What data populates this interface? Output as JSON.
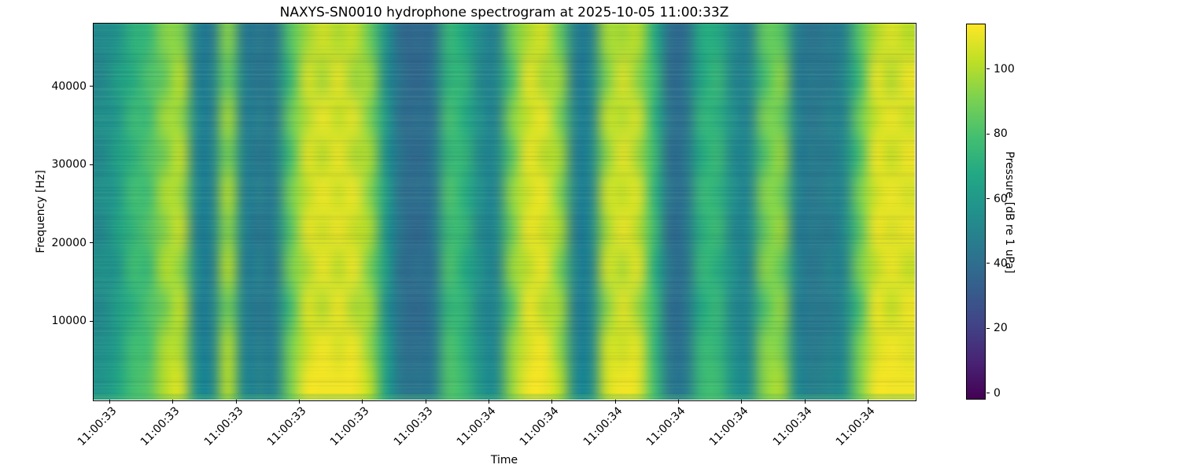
{
  "chart_data": {
    "type": "heatmap",
    "title": "NAXYS-SN0010 hydrophone spectrogram at 2025-10-05 11:00:33Z",
    "xlabel": "Time",
    "ylabel": "Frequency [Hz]",
    "x_tick_labels": [
      "11:00:33",
      "11:00:33",
      "11:00:33",
      "11:00:33",
      "11:00:33",
      "11:00:33",
      "11:00:34",
      "11:00:34",
      "11:00:34",
      "11:00:34",
      "11:00:34",
      "11:00:34",
      "11:00:34"
    ],
    "y_ticks": [
      10000,
      20000,
      30000,
      40000
    ],
    "ylim": [
      0,
      48000
    ],
    "grid_on": false,
    "colorbar": {
      "label": "Pressure [dB re 1 uPa]",
      "ticks": [
        0,
        20,
        40,
        60,
        80,
        100
      ],
      "range_db": [
        -2,
        114
      ],
      "colormap": "viridis"
    },
    "colormap_stops": [
      "#440154",
      "#482475",
      "#414487",
      "#355f8d",
      "#2a788e",
      "#21918c",
      "#22a884",
      "#44bf70",
      "#7ad151",
      "#bddf26",
      "#fde725"
    ],
    "grid_shape": [
      10,
      52
    ],
    "grid_orientation": "rows run top (48 kHz) to bottom (0 Hz); columns run left (11:00:33) to right (11:00:34)",
    "grid_db": [
      [
        53,
        57,
        72,
        75,
        93,
        92,
        50,
        46,
        93,
        46,
        45,
        44,
        83,
        97,
        106,
        100,
        104,
        87,
        57,
        38,
        38,
        40,
        75,
        67,
        53,
        48,
        88,
        100,
        106,
        87,
        48,
        48,
        98,
        98,
        101,
        70,
        40,
        40,
        69,
        69,
        53,
        48,
        86,
        84,
        48,
        42,
        46,
        48,
        83,
        100,
        108,
        102
      ],
      [
        51,
        64,
        69,
        82,
        85,
        103,
        48,
        50,
        85,
        50,
        43,
        48,
        75,
        108,
        98,
        111,
        96,
        98,
        54,
        42,
        36,
        44,
        72,
        74,
        51,
        52,
        80,
        111,
        98,
        98,
        46,
        52,
        90,
        109,
        93,
        77,
        38,
        44,
        66,
        76,
        51,
        52,
        78,
        95,
        46,
        46,
        44,
        52,
        75,
        111,
        100,
        112
      ],
      [
        56,
        58,
        77,
        76,
        99,
        94,
        53,
        47,
        99,
        47,
        48,
        45,
        89,
        99,
        112,
        102,
        110,
        89,
        62,
        39,
        41,
        41,
        80,
        68,
        56,
        49,
        94,
        102,
        112,
        89,
        51,
        49,
        104,
        100,
        107,
        71,
        43,
        41,
        74,
        70,
        56,
        49,
        92,
        86,
        51,
        43,
        49,
        49,
        89,
        102,
        112,
        104
      ],
      [
        52,
        65,
        71,
        83,
        88,
        105,
        49,
        51,
        88,
        51,
        44,
        49,
        78,
        110,
        101,
        112,
        99,
        100,
        56,
        43,
        37,
        45,
        74,
        75,
        52,
        53,
        83,
        112,
        101,
        100,
        47,
        53,
        93,
        111,
        96,
        78,
        39,
        45,
        68,
        77,
        52,
        53,
        81,
        97,
        47,
        47,
        45,
        53,
        78,
        112,
        103,
        112
      ],
      [
        56,
        59,
        79,
        77,
        101,
        96,
        53,
        48,
        101,
        48,
        48,
        46,
        91,
        101,
        112,
        104,
        112,
        91,
        64,
        40,
        41,
        42,
        82,
        69,
        56,
        50,
        96,
        104,
        112,
        91,
        51,
        50,
        106,
        102,
        109,
        72,
        43,
        42,
        76,
        71,
        56,
        50,
        94,
        88,
        51,
        44,
        49,
        50,
        91,
        104,
        112,
        106
      ],
      [
        51,
        66,
        73,
        84,
        92,
        106,
        48,
        51,
        92,
        51,
        43,
        49,
        82,
        111,
        105,
        112,
        103,
        101,
        58,
        43,
        36,
        45,
        76,
        76,
        51,
        53,
        87,
        112,
        105,
        101,
        46,
        53,
        97,
        112,
        100,
        79,
        38,
        45,
        70,
        78,
        51,
        53,
        85,
        98,
        46,
        47,
        44,
        53,
        82,
        112,
        107,
        112
      ],
      [
        57,
        57,
        79,
        75,
        102,
        93,
        54,
        47,
        102,
        47,
        49,
        45,
        92,
        98,
        112,
        101,
        112,
        88,
        64,
        39,
        42,
        41,
        82,
        67,
        57,
        49,
        97,
        101,
        112,
        88,
        52,
        49,
        107,
        99,
        110,
        70,
        44,
        41,
        76,
        69,
        57,
        49,
        95,
        85,
        52,
        43,
        50,
        49,
        92,
        101,
        112,
        103
      ],
      [
        52,
        64,
        70,
        82,
        87,
        104,
        49,
        50,
        87,
        50,
        44,
        48,
        77,
        109,
        100,
        112,
        98,
        99,
        55,
        42,
        37,
        44,
        73,
        74,
        52,
        52,
        82,
        112,
        100,
        99,
        47,
        52,
        92,
        110,
        95,
        77,
        39,
        44,
        67,
        76,
        52,
        52,
        80,
        96,
        47,
        46,
        45,
        52,
        77,
        112,
        102,
        112
      ],
      [
        55,
        61,
        78,
        79,
        100,
        98,
        52,
        49,
        100,
        49,
        47,
        47,
        90,
        103,
        112,
        106,
        111,
        93,
        63,
        41,
        40,
        43,
        81,
        71,
        55,
        51,
        95,
        106,
        112,
        93,
        50,
        51,
        105,
        104,
        108,
        74,
        42,
        43,
        75,
        73,
        55,
        51,
        93,
        90,
        50,
        45,
        48,
        51,
        90,
        106,
        112,
        108
      ],
      [
        58,
        66,
        79,
        84,
        101,
        107,
        55,
        52,
        101,
        52,
        50,
        50,
        91,
        112,
        112,
        112,
        112,
        102,
        64,
        44,
        43,
        46,
        82,
        76,
        58,
        54,
        96,
        112,
        112,
        102,
        53,
        54,
        106,
        112,
        109,
        79,
        45,
        46,
        76,
        78,
        58,
        54,
        94,
        99,
        53,
        48,
        51,
        54,
        91,
        112,
        112,
        112
      ]
    ]
  }
}
